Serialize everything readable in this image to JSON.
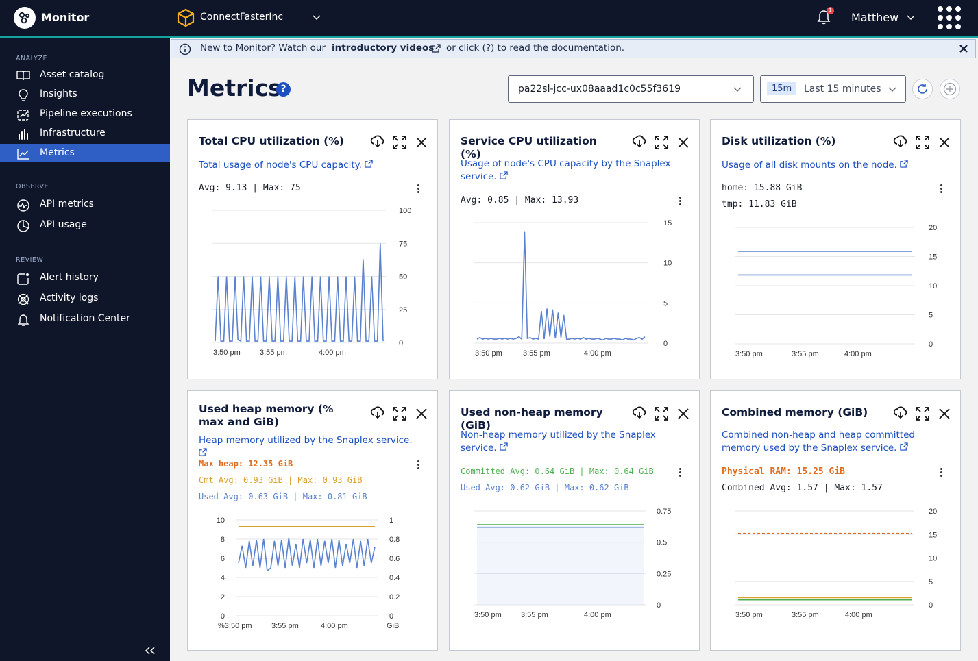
{
  "topbar": {
    "app_name": "Monitor",
    "org_name": "ConnectFasterInc",
    "notification_count": "1",
    "user_name": "Matthew"
  },
  "sidebar": {
    "sections": [
      {
        "label": "ANALYZE",
        "items": [
          {
            "label": "Asset catalog",
            "icon": "book-icon"
          },
          {
            "label": "Insights",
            "icon": "bulb-icon"
          },
          {
            "label": "Pipeline executions",
            "icon": "pipeline-icon"
          },
          {
            "label": "Infrastructure",
            "icon": "bars-icon"
          },
          {
            "label": "Metrics",
            "icon": "chart-line-icon",
            "active": true
          }
        ]
      },
      {
        "label": "OBSERVE",
        "items": [
          {
            "label": "API metrics",
            "icon": "pulse-icon"
          },
          {
            "label": "API usage",
            "icon": "pie-icon"
          }
        ]
      },
      {
        "label": "REVIEW",
        "items": [
          {
            "label": "Alert history",
            "icon": "alert-icon"
          },
          {
            "label": "Activity logs",
            "icon": "activity-icon"
          },
          {
            "label": "Notification Center",
            "icon": "notification-bell-icon"
          }
        ]
      }
    ]
  },
  "banner": {
    "text1": "New to Monitor? Watch our",
    "link": "introductory videos",
    "text2": "or click (?) to read the documentation."
  },
  "page": {
    "title": "Metrics",
    "node_select": "pa22sl-jcc-ux08aaad1c0c55f3619",
    "range_pill": "15m",
    "range_label": "Last 15 minutes"
  },
  "colors": {
    "accent": "#16a3a0",
    "brand_blue": "#1c4fbf",
    "line_blue": "#5b82cf",
    "orange": "#e36c1c",
    "gold": "#d9a02a",
    "green": "#4caf50"
  },
  "cards": [
    {
      "title": "Total CPU utilization (%)",
      "desc": "Total usage of node's CPU capacity.",
      "stats": [
        "Avg: 9.13 | Max: 75"
      ],
      "chart_data": {
        "type": "line",
        "y_ticks": [
          "100",
          "75",
          "50",
          "25",
          "0"
        ],
        "ylim": [
          0,
          100
        ],
        "x_ticks": [
          "3:50 pm",
          "3:55 pm",
          "4:00 pm"
        ],
        "series": [
          {
            "values": [
              1,
              50,
              1,
              1,
              50,
              1,
              1,
              50,
              2,
              1,
              50,
              1,
              1,
              50,
              1,
              1,
              50,
              1,
              1,
              50,
              1,
              1,
              50,
              1,
              1,
              50,
              1,
              1,
              50,
              1,
              1,
              50,
              1,
              1,
              50,
              1,
              1,
              50,
              1,
              1,
              50,
              1,
              1,
              50,
              1,
              1,
              50,
              1,
              1,
              50,
              1,
              1,
              63,
              1,
              1,
              50,
              1,
              1,
              75,
              1
            ]
          }
        ]
      }
    },
    {
      "title": "Service CPU utilization (%)",
      "desc": "Usage of node's CPU capacity by the Snaplex service.",
      "stats": [
        "Avg: 0.85 | Max: 13.93"
      ],
      "chart_data": {
        "type": "line",
        "y_ticks": [
          "15",
          "10",
          "5",
          "0"
        ],
        "ylim": [
          0,
          15
        ],
        "x_ticks": [
          "3:50 pm",
          "3:55 pm",
          "4:00 pm"
        ],
        "series": [
          {
            "values": [
              0.5,
              0.7,
              0.5,
              0.6,
              0.5,
              0.6,
              0.5,
              0.5,
              0.6,
              0.5,
              0.6,
              0.5,
              0.6,
              0.5,
              0.6,
              0.8,
              0.5,
              13.93,
              0.6,
              0.7,
              0.5,
              0.6,
              0.5,
              4,
              0.5,
              4.3,
              0.8,
              4.2,
              0.6,
              3.8,
              0.7,
              3.5,
              0.5,
              0.5,
              0.6,
              0.5,
              0.6,
              0.5,
              0.7,
              0.5,
              0.6,
              0.5,
              0.5,
              0.6,
              0.5,
              0.4,
              0.6,
              0.5,
              0.5,
              0.6,
              0.5,
              0.5,
              0.4,
              0.6,
              0.5,
              0.5,
              0.4,
              0.6,
              0.7,
              0.5,
              0.8
            ]
          }
        ]
      }
    },
    {
      "title": "Disk utilization (%)",
      "desc": "Usage of all disk mounts on the node.",
      "stats": [
        "home: 15.88 GiB",
        "tmp: 11.83 GiB"
      ],
      "chart_data": {
        "type": "line",
        "y_ticks": [
          "20",
          "15",
          "10",
          "5",
          "0"
        ],
        "ylim": [
          0,
          20
        ],
        "x_ticks": [
          "3:50 pm",
          "3:55 pm",
          "4:00 pm"
        ],
        "series": [
          {
            "name": "home",
            "values": [
              15.88,
              15.88
            ]
          },
          {
            "name": "tmp",
            "values": [
              11.83,
              11.83
            ]
          }
        ]
      }
    },
    {
      "title": "Used heap memory (% max and GiB)",
      "desc": "Heap memory utilized by the Snaplex service.",
      "stats": [
        "Max heap: 12.35 GiB",
        "Cmt Avg: 0.93 GiB | Max: 0.93 GiB",
        "Used Avg: 0.63 GiB | Max: 0.81 GiB"
      ],
      "chart_data": {
        "type": "line",
        "y_ticks": [
          "10",
          "8",
          "6",
          "4",
          "2",
          "0"
        ],
        "ylim": [
          0,
          10
        ],
        "y2_ticks": [
          "1",
          "0.8",
          "0.6",
          "0.4",
          "0.2",
          "0"
        ],
        "y2lim": [
          0,
          1
        ],
        "x_ticks": [
          "%3:50 pm",
          "3:55 pm",
          "4:00 pm"
        ],
        "y2_unit": "GiB",
        "series": [
          {
            "name": "Cmt",
            "axis": "y2",
            "values": [
              0.93,
              0.93
            ]
          },
          {
            "name": "Used",
            "axis": "y2",
            "values": [
              0.55,
              0.73,
              0.5,
              0.78,
              0.52,
              0.79,
              0.5,
              0.8,
              0.47,
              0.5,
              0.78,
              0.52,
              0.79,
              0.5,
              0.81,
              0.52,
              0.75,
              0.5,
              0.8,
              0.55,
              0.79,
              0.5,
              0.8,
              0.52,
              0.78,
              0.55,
              0.8,
              0.5,
              0.79,
              0.52,
              0.75,
              0.55,
              0.8,
              0.5,
              0.78,
              0.52,
              0.8,
              0.55,
              0.72
            ]
          }
        ]
      }
    },
    {
      "title": "Used non-heap memory (GiB)",
      "desc": "Non-heap memory utilized by the Snaplex service.",
      "stats": [
        "Committed Avg: 0.64 GiB | Max: 0.64 GiB",
        "Used Avg: 0.62 GiB | Max: 0.62 GiB"
      ],
      "chart_data": {
        "type": "area",
        "y_ticks": [
          "0.75",
          "0.5",
          "0.25",
          "0"
        ],
        "ylim": [
          0,
          0.75
        ],
        "x_ticks": [
          "3:50 pm",
          "3:55 pm",
          "4:00 pm"
        ],
        "series": [
          {
            "name": "Committed",
            "values": [
              0.64,
              0.64
            ]
          },
          {
            "name": "Used",
            "values": [
              0.62,
              0.62
            ]
          }
        ]
      }
    },
    {
      "title": "Combined memory (GiB)",
      "desc": "Combined non-heap and heap committed memory used by the Snaplex service.",
      "stats": [
        "Physical RAM: 15.25 GiB",
        "Combined Avg: 1.57 | Max: 1.57"
      ],
      "chart_data": {
        "type": "line",
        "y_ticks": [
          "20",
          "15",
          "10",
          "5",
          "0"
        ],
        "ylim": [
          0,
          20
        ],
        "x_ticks": [
          "3:50 pm",
          "3:55 pm",
          "4:00 pm"
        ],
        "series": [
          {
            "name": "Physical RAM",
            "values": [
              15.25,
              15.25
            ]
          },
          {
            "name": "Combined",
            "values": [
              1.57,
              1.57
            ]
          },
          {
            "values": [
              1.1,
              1.1
            ]
          }
        ]
      }
    }
  ]
}
